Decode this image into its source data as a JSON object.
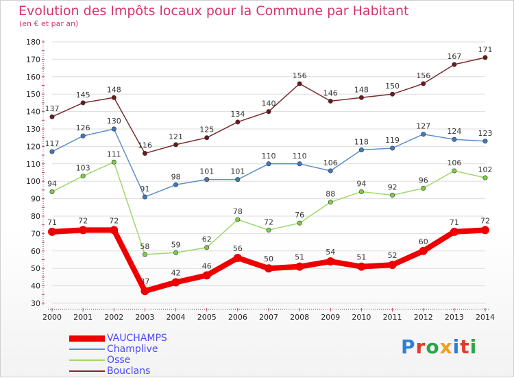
{
  "header": {
    "title": "Evolution des Impôts locaux pour la Commune par Habitant",
    "subtitle": "(en € et par an)"
  },
  "brand": {
    "text": "Proxiti"
  },
  "colors": {
    "title": "#d6336c",
    "axis": "#222222",
    "grid": "#dddddd",
    "legend_text": "#4a4aff"
  },
  "chart_data": {
    "type": "line",
    "title": "Evolution des Impôts locaux pour la Commune par Habitant",
    "subtitle": "(en € et par an)",
    "x": [
      "2000",
      "2001",
      "2002",
      "2003",
      "2004",
      "2005",
      "2006",
      "2007",
      "2008",
      "2009",
      "2010",
      "2011",
      "2012",
      "2013",
      "2014"
    ],
    "yticks": [
      30,
      40,
      50,
      60,
      70,
      80,
      90,
      100,
      110,
      120,
      130,
      140,
      150,
      160,
      170,
      180
    ],
    "ylim": [
      30,
      180
    ],
    "grid": "horizontal",
    "legend_position": "bottom-left",
    "series": [
      {
        "name": "VAUCHAMPS",
        "color": "#ee0000",
        "marker": "#ee0000",
        "width": 8,
        "radius": 6,
        "values": [
          71,
          72,
          72,
          37,
          42,
          46,
          56,
          50,
          51,
          54,
          51,
          52,
          60,
          71,
          72
        ]
      },
      {
        "name": "Champlive",
        "color": "#5b8ec9",
        "marker": "#3d7ac0",
        "width": 1.5,
        "radius": 3.2,
        "values": [
          117,
          126,
          130,
          91,
          98,
          101,
          101,
          110,
          110,
          106,
          118,
          119,
          127,
          124,
          123
        ]
      },
      {
        "name": "Osse",
        "color": "#9dd86a",
        "marker": "#80cc44",
        "width": 1.5,
        "radius": 3.2,
        "values": [
          94,
          103,
          111,
          58,
          59,
          62,
          78,
          72,
          76,
          88,
          94,
          92,
          96,
          106,
          102
        ]
      },
      {
        "name": "Bouclans",
        "color": "#7a2a2a",
        "marker": "#6a1a1a",
        "width": 1.5,
        "radius": 3.2,
        "values": [
          137,
          145,
          148,
          116,
          121,
          125,
          134,
          140,
          156,
          146,
          148,
          150,
          156,
          167,
          171
        ]
      }
    ]
  }
}
